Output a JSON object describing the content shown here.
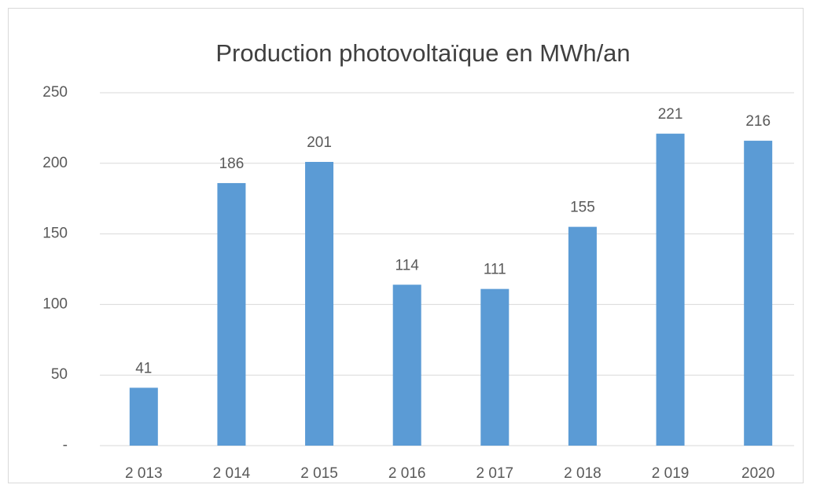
{
  "chart_data": {
    "type": "bar",
    "title": "Production photovoltaïque en MWh/an",
    "categories": [
      "2 013",
      "2 014",
      "2 015",
      "2 016",
      "2 017",
      "2 018",
      "2 019",
      "2020"
    ],
    "values": [
      41,
      186,
      201,
      114,
      111,
      155,
      221,
      216
    ],
    "color": "#5b9bd5",
    "ylim": [
      0,
      250
    ],
    "yticks": [
      {
        "value": 0,
        "label": "-"
      },
      50,
      100,
      150,
      200,
      250
    ],
    "grid": true
  }
}
